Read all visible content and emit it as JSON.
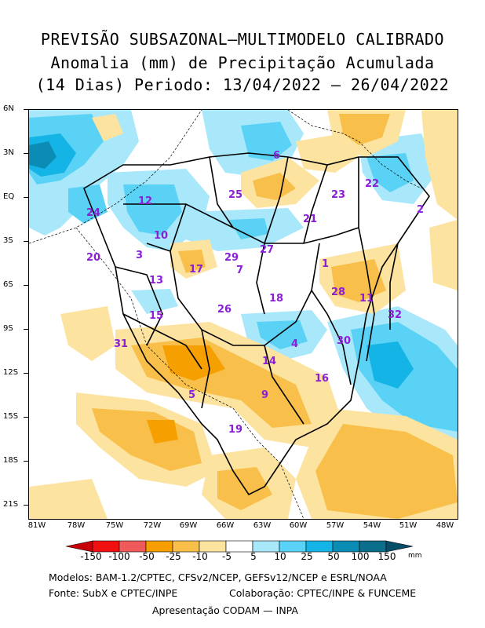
{
  "title": {
    "line1": "PREVISÃO SUBSAZONAL—MULTIMODELO CALIBRADO",
    "line2": "Anomalia (mm) de Precipitação Acumulada",
    "line3": "(14 Dias) Periodo: 13/04/2022 — 26/04/2022"
  },
  "axes": {
    "lat_labels": [
      "6N",
      "3N",
      "EQ",
      "3S",
      "6S",
      "9S",
      "12S",
      "15S",
      "18S",
      "21S"
    ],
    "lon_labels": [
      "81W",
      "78W",
      "75W",
      "72W",
      "69W",
      "66W",
      "63W",
      "60W",
      "57W",
      "54W",
      "51W",
      "48W"
    ]
  },
  "colorbar": {
    "unit": "mm",
    "labels": [
      "-150",
      "-100",
      "-50",
      "-25",
      "-10",
      "-5",
      "5",
      "10",
      "25",
      "50",
      "100",
      "150"
    ],
    "colors": [
      "#c8000a",
      "#f01010",
      "#f05a5a",
      "#f5a000",
      "#f8c04a",
      "#fde3a0",
      "#ffffff",
      "#a8e8fa",
      "#5ad2f5",
      "#14b4e6",
      "#0a8cb4",
      "#0a6e8c",
      "#064e68"
    ]
  },
  "basins": [
    {
      "id": "1"
    },
    {
      "id": "2"
    },
    {
      "id": "3"
    },
    {
      "id": "4"
    },
    {
      "id": "5"
    },
    {
      "id": "6"
    },
    {
      "id": "7"
    },
    {
      "id": "9"
    },
    {
      "id": "10"
    },
    {
      "id": "11"
    },
    {
      "id": "12"
    },
    {
      "id": "13"
    },
    {
      "id": "14"
    },
    {
      "id": "15"
    },
    {
      "id": "16"
    },
    {
      "id": "17"
    },
    {
      "id": "18"
    },
    {
      "id": "19"
    },
    {
      "id": "20"
    },
    {
      "id": "21"
    },
    {
      "id": "22"
    },
    {
      "id": "23"
    },
    {
      "id": "24"
    },
    {
      "id": "25"
    },
    {
      "id": "26"
    },
    {
      "id": "27"
    },
    {
      "id": "28"
    },
    {
      "id": "29"
    },
    {
      "id": "30"
    },
    {
      "id": "31"
    },
    {
      "id": "32"
    }
  ],
  "credits": {
    "models": "Modelos: BAM-1.2/CPTEC, CFSv2/NCEP, GEFSv12/NCEP e ESRL/NOAA",
    "source": "Fonte: SubX e CPTEC/INPE",
    "collab": "Colaboração: CPTEC/INPE & FUNCEME",
    "presentation": "Apresentação CODAM — INPA"
  }
}
